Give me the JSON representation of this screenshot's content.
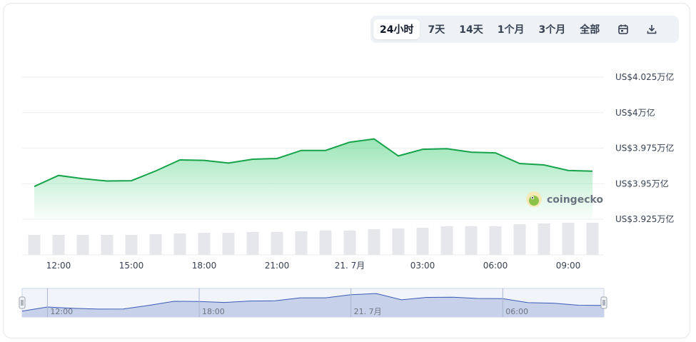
{
  "tabs": [
    {
      "label": "24小时",
      "active": true
    },
    {
      "label": "7天",
      "active": false
    },
    {
      "label": "14天",
      "active": false
    },
    {
      "label": "1个月",
      "active": false
    },
    {
      "label": "3个月",
      "active": false
    },
    {
      "label": "全部",
      "active": false
    }
  ],
  "icons": {
    "calendar": "calendar-icon",
    "download": "download-icon"
  },
  "watermark": "coingecko",
  "colors": {
    "line": "#16a34a",
    "area": "#22c55e",
    "volume": "#e5e7eb",
    "navigator_fill": "#c7d2ea",
    "navigator_line": "#3b5bb5"
  },
  "chart_data": {
    "type": "line",
    "x": [
      "11:00",
      "12:00",
      "13:00",
      "14:00",
      "15:00",
      "16:00",
      "17:00",
      "18:00",
      "19:00",
      "20:00",
      "21:00",
      "22:00",
      "23:00",
      "21. 7月",
      "01:00",
      "02:00",
      "03:00",
      "04:00",
      "05:00",
      "06:00",
      "07:00",
      "08:00",
      "09:00",
      "10:00"
    ],
    "price": [
      39480,
      39558,
      39535,
      39519,
      39521,
      39589,
      39667,
      39664,
      39645,
      39672,
      39677,
      39734,
      39734,
      39792,
      39815,
      39695,
      39742,
      39746,
      39722,
      39717,
      39642,
      39632,
      39593,
      39588
    ],
    "volume": [
      28,
      28,
      28,
      28,
      28,
      29,
      30,
      31,
      31,
      32,
      32,
      33,
      34,
      34,
      36,
      37,
      38,
      40,
      40,
      40,
      43,
      44,
      45,
      45
    ],
    "y_ticks": [
      "US$4.025万亿",
      "US$4万亿",
      "US$3.975万亿",
      "US$3.95万亿",
      "US$3.925万亿"
    ],
    "y_tick_values": [
      40250,
      40000,
      39750,
      39500,
      39250
    ],
    "ylim": [
      39250,
      40250
    ],
    "x_ticks": [
      "12:00",
      "15:00",
      "18:00",
      "21:00",
      "21. 7月",
      "03:00",
      "06:00",
      "09:00"
    ],
    "x_tick_index": [
      1,
      4,
      7,
      10,
      13,
      16,
      19,
      22
    ],
    "navigator_ticks": [
      "12:00",
      "18:00",
      "21. 7月",
      "06:00"
    ],
    "navigator_tick_index": [
      1,
      7,
      13,
      19
    ],
    "grid": true
  }
}
